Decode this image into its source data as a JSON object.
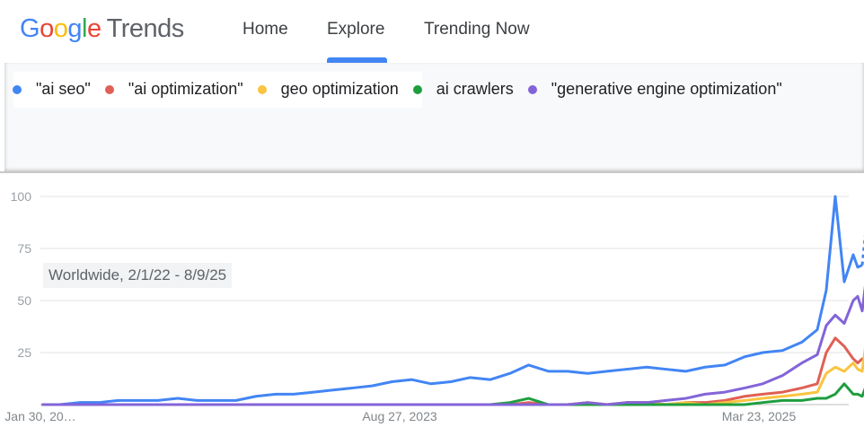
{
  "header": {
    "logo": {
      "google": "Google",
      "trends": "Trends"
    },
    "nav": [
      "Home",
      "Explore",
      "Trending Now"
    ],
    "active": "Explore"
  },
  "legend": [
    {
      "label": "\"ai seo\"",
      "color": "#4285f4"
    },
    {
      "label": "\"ai optimization\"",
      "color": "#e06055"
    },
    {
      "label": "geo optimization",
      "color": "#f9c440"
    },
    {
      "label": "ai crawlers",
      "color": "#1e9e3e"
    },
    {
      "label": "\"generative engine optimization\"",
      "color": "#8364d8"
    }
  ],
  "chart_label": "Worldwide, 2/1/22 - 8/9/25",
  "chart_data": {
    "type": "line",
    "ylim": [
      0,
      100
    ],
    "yticks": [
      "100",
      "75",
      "50",
      "25"
    ],
    "xticks": [
      "Jan 30, 20…",
      "Aug 27, 2023",
      "Mar 23, 2025"
    ],
    "grid": true,
    "x": [
      "2022-02-01",
      "2022-03-01",
      "2022-04-01",
      "2022-05-01",
      "2022-06-01",
      "2022-07-01",
      "2022-08-01",
      "2022-09-01",
      "2022-10-01",
      "2022-11-01",
      "2022-12-01",
      "2023-01-01",
      "2023-02-01",
      "2023-03-01",
      "2023-04-01",
      "2023-05-01",
      "2023-06-01",
      "2023-07-01",
      "2023-08-01",
      "2023-09-01",
      "2023-10-01",
      "2023-11-01",
      "2023-12-01",
      "2024-01-01",
      "2024-02-01",
      "2024-03-01",
      "2024-04-01",
      "2024-05-01",
      "2024-06-01",
      "2024-07-01",
      "2024-08-01",
      "2024-09-01",
      "2024-10-01",
      "2024-11-01",
      "2024-12-01",
      "2025-01-01",
      "2025-02-01",
      "2025-03-01",
      "2025-04-01",
      "2025-05-01",
      "2025-05-25",
      "2025-06-08",
      "2025-06-22",
      "2025-07-06",
      "2025-07-20",
      "2025-07-27",
      "2025-08-03",
      "2025-08-09"
    ],
    "series": [
      {
        "name": "\"ai seo\"",
        "values": [
          0,
          0,
          1,
          1,
          2,
          2,
          2,
          3,
          2,
          2,
          2,
          4,
          5,
          5,
          6,
          7,
          8,
          9,
          11,
          12,
          10,
          11,
          13,
          12,
          15,
          19,
          16,
          16,
          15,
          16,
          17,
          18,
          17,
          16,
          18,
          19,
          23,
          25,
          26,
          30,
          36,
          55,
          100,
          59,
          72,
          66,
          67,
          85
        ]
      },
      {
        "name": "\"ai optimization\"",
        "values": [
          0,
          0,
          0,
          0,
          0,
          0,
          0,
          0,
          0,
          0,
          0,
          0,
          0,
          0,
          0,
          0,
          0,
          0,
          0,
          0,
          0,
          0,
          0,
          0,
          0,
          1,
          0,
          0,
          1,
          0,
          1,
          1,
          0,
          1,
          1,
          2,
          4,
          5,
          6,
          8,
          10,
          25,
          32,
          28,
          22,
          20,
          22,
          22
        ]
      },
      {
        "name": "geo optimization",
        "values": [
          0,
          0,
          0,
          0,
          0,
          0,
          0,
          0,
          0,
          0,
          0,
          0,
          0,
          0,
          0,
          0,
          0,
          0,
          0,
          0,
          0,
          0,
          0,
          0,
          0,
          0,
          0,
          0,
          1,
          0,
          0,
          1,
          0,
          1,
          0,
          1,
          2,
          3,
          4,
          5,
          6,
          15,
          18,
          16,
          20,
          17,
          16,
          30
        ]
      },
      {
        "name": "ai crawlers",
        "values": [
          0,
          0,
          0,
          0,
          0,
          0,
          0,
          0,
          0,
          0,
          0,
          0,
          0,
          0,
          0,
          0,
          0,
          0,
          0,
          0,
          0,
          0,
          0,
          0,
          1,
          3,
          0,
          0,
          0,
          0,
          0,
          0,
          0,
          0,
          0,
          0,
          0,
          1,
          2,
          2,
          3,
          3,
          5,
          10,
          5,
          5,
          4,
          9
        ]
      },
      {
        "name": "\"generative engine optimization\"",
        "values": [
          0,
          0,
          0,
          0,
          0,
          0,
          0,
          0,
          0,
          0,
          0,
          0,
          0,
          0,
          0,
          0,
          0,
          0,
          0,
          0,
          0,
          0,
          0,
          0,
          0,
          0,
          0,
          0,
          1,
          0,
          1,
          1,
          2,
          3,
          5,
          6,
          8,
          10,
          14,
          20,
          24,
          38,
          43,
          39,
          50,
          52,
          45,
          60
        ]
      }
    ]
  }
}
